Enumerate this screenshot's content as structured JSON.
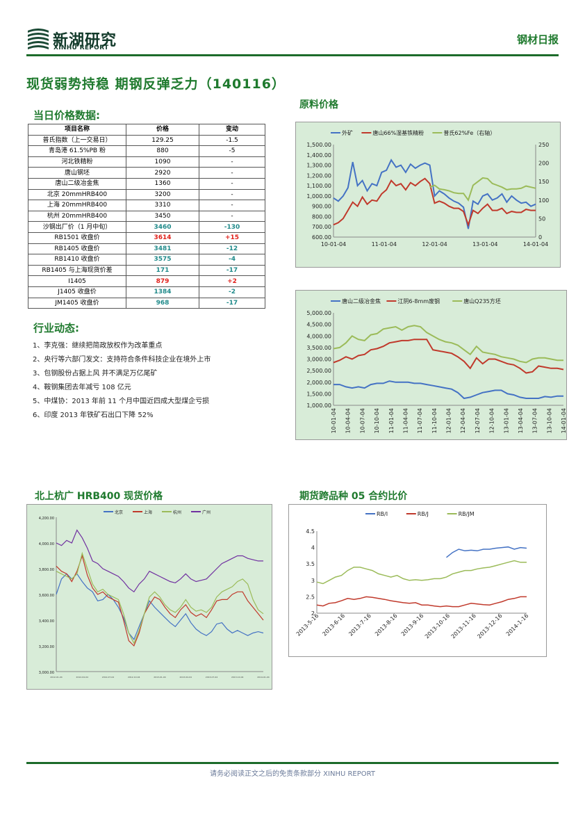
{
  "header": {
    "logo_cn": "新湖研究",
    "logo_en": "XINHU REPORT",
    "report_type": "钢材日报",
    "title": "现货弱势持稳 期钢反弹乏力（140116）"
  },
  "sections": {
    "price_data": "当日价格数据:",
    "industry": "行业动态:",
    "raw_material": "原料价格",
    "city_spot": "北上杭广 HRB400 现货价格",
    "cross_ratio": "期货跨品种 05 合约比价"
  },
  "table": {
    "headers": [
      "项目名称",
      "价格",
      "变动"
    ],
    "rows": [
      {
        "name": "普氏指数（上一交易日）",
        "price": "129.25",
        "change": "-1.5",
        "style": "plain"
      },
      {
        "name": "青岛港 61.5%PB 粉",
        "price": "880",
        "change": "-5",
        "style": "plain"
      },
      {
        "name": "河北铁精粉",
        "price": "1090",
        "change": "-",
        "style": "plain"
      },
      {
        "name": "唐山钢坯",
        "price": "2920",
        "change": "-",
        "style": "plain"
      },
      {
        "name": "唐山二级冶金焦",
        "price": "1360",
        "change": "-",
        "style": "plain"
      },
      {
        "name": "北京 20mmHRB400",
        "price": "3200",
        "change": "-",
        "style": "plain"
      },
      {
        "name": "上海 20mmHRB400",
        "price": "3310",
        "change": "-",
        "style": "plain"
      },
      {
        "name": "杭州 20mmHRB400",
        "price": "3450",
        "change": "-",
        "style": "plain"
      },
      {
        "name": "沙钢出厂价（1 月中旬）",
        "price": "3460",
        "change": "-130",
        "style": "teal"
      },
      {
        "name": "RB1501 收盘价",
        "price": "3614",
        "change": "+15",
        "style": "red"
      },
      {
        "name": "RB1405 收盘价",
        "price": "3481",
        "change": "-12",
        "style": "teal"
      },
      {
        "name": "RB1410 收盘价",
        "price": "3575",
        "change": "-4",
        "style": "teal"
      },
      {
        "name": "RB1405 与上海现货价差",
        "price": "171",
        "change": "-17",
        "style": "teal"
      },
      {
        "name": "I1405",
        "price": "879",
        "change": "+2",
        "style": "red"
      },
      {
        "name": "J1405 收盘价",
        "price": "1384",
        "change": "-2",
        "style": "teal"
      },
      {
        "name": "JM1405 收盘价",
        "price": "968",
        "change": "-17",
        "style": "teal"
      }
    ]
  },
  "news": [
    "1、李克强：继续把简政放权作为改革重点",
    "2、央行等六部门发文：支持符合条件科技企业在境外上市",
    "3、包钢股份占据上风 并不满足万亿尾矿",
    "4、鞍钢集团去年减亏 108 亿元",
    "5、中煤协：2013 年前 11 个月中国近四成大型煤企亏损",
    "6、印度 2013 年铁矿石出口下降 52%"
  ],
  "footer": "请务必阅读正文之后的免责条款部分 XINHU REPORT",
  "colors": {
    "brand_green": "#1f7a2e",
    "blue": "#4472c4",
    "red": "#c0392b",
    "green": "#9bbb59",
    "purple": "#7030a0"
  },
  "chart_data": [
    {
      "type": "line",
      "legend": [
        "外矿",
        "唐山66%湿基铁精粉",
        "普氏62%Fe（右轴）"
      ],
      "x_ticks": [
        "10-01-04",
        "11-01-04",
        "12-01-04",
        "13-01-04",
        "14-01-04"
      ],
      "y_ticks": [
        "1,500.00",
        "1,400.00",
        "1,300.00",
        "1,200.00",
        "1,100.00",
        "1,000.00",
        "900.00",
        "800.00",
        "700.00",
        "600.00"
      ],
      "y2_ticks": [
        "250",
        "200",
        "150",
        "100",
        "50",
        "0"
      ],
      "ylim": [
        600,
        1500
      ],
      "y2lim": [
        0,
        250
      ],
      "series": [
        {
          "name": "外矿",
          "values": [
            980,
            950,
            1000,
            1080,
            1330,
            1100,
            1150,
            1050,
            1120,
            1100,
            1230,
            1250,
            1350,
            1280,
            1300,
            1230,
            1310,
            1270,
            1300,
            1320,
            1300,
            1000,
            1050,
            1020,
            980,
            950,
            930,
            890,
            680,
            950,
            920,
            1000,
            1020,
            960,
            980,
            1020,
            940,
            1000,
            960,
            930,
            940,
            900,
            920
          ]
        },
        {
          "name": "唐山66%湿基铁精粉",
          "values": [
            720,
            740,
            780,
            860,
            940,
            900,
            990,
            920,
            960,
            950,
            1020,
            1060,
            1150,
            1100,
            1120,
            1060,
            1130,
            1100,
            1140,
            1170,
            1120,
            930,
            950,
            930,
            900,
            880,
            880,
            850,
            720,
            860,
            830,
            880,
            920,
            860,
            860,
            880,
            830,
            850,
            840,
            840,
            870,
            860,
            860
          ]
        },
        {
          "name": "普氏62%Fe（右轴）",
          "values": [
            null,
            null,
            null,
            null,
            null,
            null,
            null,
            null,
            null,
            null,
            null,
            null,
            null,
            null,
            null,
            null,
            null,
            null,
            null,
            null,
            135,
            140,
            130,
            128,
            125,
            120,
            118,
            118,
            100,
            140,
            150,
            160,
            158,
            145,
            140,
            135,
            128,
            130,
            130,
            132,
            138,
            135,
            132
          ]
        }
      ]
    },
    {
      "type": "line",
      "legend": [
        "唐山二级冶金焦",
        "江阴6-8mm废钢",
        "唐山Q235方坯"
      ],
      "x_ticks": [
        "10-01-04",
        "10-04-04",
        "10-07-04",
        "10-10-04",
        "11-01-04",
        "11-04-04",
        "11-07-04",
        "11-10-04",
        "12-01-04",
        "12-04-04",
        "12-07-04",
        "12-10-04",
        "13-01-04",
        "13-04-04",
        "13-07-04",
        "13-10-04",
        "14-01-04"
      ],
      "y_ticks": [
        "5,000.00",
        "4,500.00",
        "4,000.00",
        "3,500.00",
        "3,000.00",
        "2,500.00",
        "2,000.00",
        "1,500.00",
        "1,000.00"
      ],
      "ylim": [
        1000,
        5000
      ],
      "series": [
        {
          "name": "唐山二级冶金焦",
          "values": [
            1900,
            1900,
            1800,
            1750,
            1800,
            1750,
            1900,
            1950,
            1950,
            2050,
            2000,
            2000,
            2000,
            1950,
            1950,
            1900,
            1850,
            1800,
            1750,
            1700,
            1550,
            1300,
            1350,
            1450,
            1550,
            1600,
            1650,
            1650,
            1500,
            1450,
            1350,
            1300,
            1300,
            1300,
            1380,
            1350,
            1400,
            1400
          ]
        },
        {
          "name": "江阴6-8mm废钢",
          "values": [
            2850,
            2950,
            3100,
            3000,
            3150,
            3200,
            3400,
            3450,
            3550,
            3700,
            3750,
            3800,
            3800,
            3850,
            3850,
            3850,
            3400,
            3350,
            3300,
            3250,
            3100,
            2900,
            2600,
            3050,
            2800,
            3000,
            3000,
            2900,
            2800,
            2750,
            2600,
            2400,
            2450,
            2700,
            2650,
            2600,
            2600,
            2550
          ]
        },
        {
          "name": "唐山Q235方坯",
          "values": [
            3450,
            3500,
            3700,
            4000,
            3850,
            3800,
            4050,
            4100,
            4300,
            4350,
            4400,
            4250,
            4400,
            4450,
            4400,
            4150,
            4000,
            3850,
            3750,
            3700,
            3600,
            3400,
            3200,
            3550,
            3300,
            3250,
            3200,
            3100,
            3050,
            3000,
            2900,
            2850,
            3000,
            3050,
            3050,
            3000,
            2950,
            2950
          ]
        }
      ]
    },
    {
      "type": "line",
      "legend": [
        "北京",
        "上海",
        "杭州",
        "广州"
      ],
      "y_ticks": [
        "4,200.00",
        "4,000.00",
        "3,800.00",
        "3,600.00",
        "3,400.00",
        "3,200.00",
        "3,000.00"
      ],
      "ylim": [
        3000,
        4200
      ],
      "series": [
        {
          "name": "北京",
          "values": [
            3600,
            3720,
            3760,
            3720,
            3760,
            3700,
            3650,
            3620,
            3550,
            3560,
            3600,
            3560,
            3500,
            3420,
            3300,
            3250,
            3350,
            3450,
            3550,
            3500,
            3460,
            3420,
            3380,
            3350,
            3400,
            3450,
            3380,
            3330,
            3300,
            3280,
            3310,
            3370,
            3380,
            3330,
            3300,
            3320,
            3300,
            3280,
            3300,
            3310,
            3300
          ]
        },
        {
          "name": "上海",
          "values": [
            3820,
            3780,
            3760,
            3700,
            3780,
            3900,
            3750,
            3650,
            3600,
            3620,
            3580,
            3560,
            3540,
            3400,
            3240,
            3200,
            3300,
            3450,
            3520,
            3580,
            3560,
            3500,
            3450,
            3420,
            3480,
            3520,
            3460,
            3430,
            3450,
            3420,
            3480,
            3550,
            3560,
            3560,
            3600,
            3620,
            3620,
            3550,
            3500,
            3450,
            3400
          ]
        },
        {
          "name": "杭州",
          "values": [
            3780,
            3760,
            3740,
            3720,
            3760,
            3920,
            3800,
            3680,
            3620,
            3640,
            3600,
            3580,
            3560,
            3450,
            3300,
            3220,
            3320,
            3450,
            3580,
            3620,
            3580,
            3520,
            3480,
            3460,
            3500,
            3560,
            3500,
            3470,
            3480,
            3460,
            3500,
            3580,
            3620,
            3640,
            3660,
            3700,
            3720,
            3680,
            3560,
            3480,
            3450
          ]
        },
        {
          "name": "广州",
          "values": [
            4000,
            3980,
            4020,
            4000,
            4100,
            4040,
            3960,
            3860,
            3840,
            3800,
            3780,
            3760,
            3740,
            3700,
            3650,
            3620,
            3680,
            3720,
            3780,
            3760,
            3740,
            3720,
            3700,
            3690,
            3720,
            3760,
            3720,
            3700,
            3710,
            3720,
            3760,
            3800,
            3840,
            3860,
            3880,
            3900,
            3900,
            3880,
            3870,
            3860,
            3860
          ]
        }
      ]
    },
    {
      "type": "line",
      "legend": [
        "RB/I",
        "RB/J",
        "RB/JM"
      ],
      "x_ticks": [
        "2013-5-16",
        "2013-6-16",
        "2013-7-16",
        "2013-8-16",
        "2013-9-16",
        "2013-10-16",
        "2013-11-16",
        "2013-12-16",
        "2014-1-16"
      ],
      "y_ticks": [
        "4.5",
        "4",
        "3.5",
        "3",
        "2.5",
        "2"
      ],
      "ylim": [
        2,
        4.5
      ],
      "series": [
        {
          "name": "RB/I",
          "values": [
            null,
            null,
            null,
            null,
            null,
            null,
            null,
            null,
            null,
            null,
            null,
            null,
            null,
            null,
            null,
            null,
            null,
            null,
            null,
            null,
            null,
            3.7,
            3.85,
            3.95,
            3.9,
            3.92,
            3.9,
            3.95,
            3.95,
            3.98,
            4.0,
            4.02,
            3.95,
            4.0,
            3.98
          ]
        },
        {
          "name": "RB/J",
          "values": [
            2.25,
            2.22,
            2.3,
            2.32,
            2.38,
            2.45,
            2.42,
            2.45,
            2.5,
            2.48,
            2.45,
            2.42,
            2.38,
            2.35,
            2.32,
            2.3,
            2.32,
            2.25,
            2.25,
            2.22,
            2.2,
            2.22,
            2.2,
            2.2,
            2.25,
            2.3,
            2.28,
            2.26,
            2.25,
            2.3,
            2.35,
            2.42,
            2.45,
            2.5,
            2.5
          ]
        },
        {
          "name": "RB/JM",
          "values": [
            2.95,
            2.9,
            3.0,
            3.1,
            3.15,
            3.3,
            3.4,
            3.4,
            3.35,
            3.3,
            3.2,
            3.15,
            3.1,
            3.15,
            3.05,
            3.0,
            3.02,
            3.0,
            3.02,
            3.05,
            3.05,
            3.1,
            3.2,
            3.25,
            3.3,
            3.3,
            3.35,
            3.38,
            3.4,
            3.45,
            3.5,
            3.55,
            3.6,
            3.55,
            3.55
          ]
        }
      ]
    }
  ]
}
